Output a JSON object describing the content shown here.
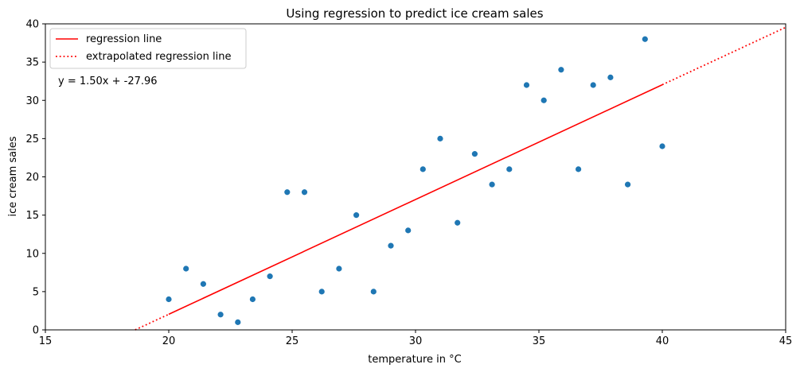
{
  "chart_data": {
    "type": "scatter",
    "title": "Using regression to predict ice cream sales",
    "xlabel": "temperature in °C",
    "ylabel": "ice cream sales",
    "xlim": [
      15,
      45
    ],
    "ylim": [
      0,
      40
    ],
    "xticks": [
      15,
      20,
      25,
      30,
      35,
      40,
      45
    ],
    "yticks": [
      0,
      5,
      10,
      15,
      20,
      25,
      30,
      35,
      40
    ],
    "grid": false,
    "legend_position": "top-left",
    "equation": "y = 1.50x + -27.96",
    "points_color": "#1f77b4",
    "line_color": "#ff0000",
    "points": [
      {
        "x": 20.0,
        "y": 4
      },
      {
        "x": 20.7,
        "y": 8
      },
      {
        "x": 21.4,
        "y": 6
      },
      {
        "x": 22.1,
        "y": 2
      },
      {
        "x": 22.8,
        "y": 1
      },
      {
        "x": 23.4,
        "y": 4
      },
      {
        "x": 24.1,
        "y": 7
      },
      {
        "x": 24.8,
        "y": 18
      },
      {
        "x": 25.5,
        "y": 18
      },
      {
        "x": 26.2,
        "y": 5
      },
      {
        "x": 26.9,
        "y": 8
      },
      {
        "x": 27.6,
        "y": 15
      },
      {
        "x": 28.3,
        "y": 5
      },
      {
        "x": 29.0,
        "y": 11
      },
      {
        "x": 29.7,
        "y": 13
      },
      {
        "x": 30.3,
        "y": 21
      },
      {
        "x": 31.0,
        "y": 25
      },
      {
        "x": 31.7,
        "y": 14
      },
      {
        "x": 32.4,
        "y": 23
      },
      {
        "x": 33.1,
        "y": 19
      },
      {
        "x": 33.8,
        "y": 21
      },
      {
        "x": 34.5,
        "y": 32
      },
      {
        "x": 35.2,
        "y": 30
      },
      {
        "x": 35.9,
        "y": 34
      },
      {
        "x": 36.6,
        "y": 21
      },
      {
        "x": 37.2,
        "y": 32
      },
      {
        "x": 37.9,
        "y": 33
      },
      {
        "x": 38.6,
        "y": 19
      },
      {
        "x": 39.3,
        "y": 38
      },
      {
        "x": 40.0,
        "y": 24
      }
    ],
    "series": [
      {
        "name": "regression line",
        "style": "solid",
        "x": [
          20,
          40
        ],
        "y": [
          2.04,
          32.04
        ]
      },
      {
        "name": "extrapolated regression line",
        "style": "dotted",
        "x": [
          18.64,
          20
        ],
        "y": [
          0,
          2.04
        ]
      },
      {
        "name": "extrapolated regression line",
        "style": "dotted",
        "x": [
          40,
          45
        ],
        "y": [
          32.04,
          39.54
        ]
      }
    ],
    "legend": [
      {
        "label": "regression line",
        "style": "solid"
      },
      {
        "label": "extrapolated regression line",
        "style": "dotted"
      }
    ]
  }
}
